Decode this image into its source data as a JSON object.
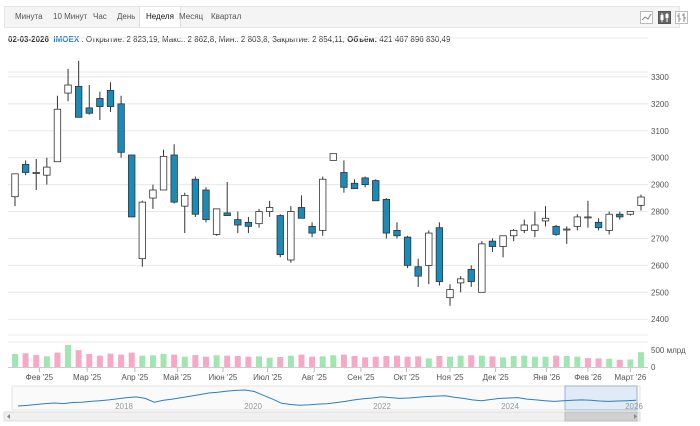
{
  "tabs": [
    {
      "label": "Минута"
    },
    {
      "label": "10 Минут"
    },
    {
      "label": "Час"
    },
    {
      "label": "День"
    },
    {
      "label": "Неделя"
    },
    {
      "label": "Месяц"
    },
    {
      "label": "Квартал"
    }
  ],
  "active_tab": "Неделя",
  "tools": [
    {
      "icon": "line-chart-icon"
    },
    {
      "icon": "candlestick-icon"
    },
    {
      "icon": "ohlc-bars-icon"
    }
  ],
  "info": {
    "date": "02-03-2026",
    "ticker": "IMOEX",
    "open_label": "Открытие:",
    "open": "2 823,19",
    "high_label": "Макс.:",
    "high": "2 862,8",
    "low_label": "Мин.:",
    "low": "2 803,8",
    "close_label": "Закрытие:",
    "close": "2 854,11",
    "volume_label": "Объём:",
    "volume": "421 467 896 830,49"
  },
  "colors": {
    "up_candle": "#ffffff",
    "down_candle": "#1a8ab8",
    "candle_outline": "#333333",
    "volume_up": "#9fe6b0",
    "volume_down": "#f7a8c4",
    "grid": "#e8e8e8",
    "navigator_line": "#2a7fc1",
    "navigator_selection": "#d6e3f5"
  },
  "chart_data": {
    "type": "candlestick",
    "y_ticks": [
      2400,
      2500,
      2600,
      2700,
      2800,
      2900,
      3000,
      3100,
      3200,
      3300
    ],
    "ylim": [
      2360,
      3400
    ],
    "x_labels": [
      "Фев '25",
      "Мар '25",
      "Апр '25",
      "Май '25",
      "Июн '25",
      "Июл '25",
      "Авг '25",
      "Сен '25",
      "Окт '25",
      "Ноя '25",
      "Дек '25",
      "Янв '26",
      "Фев '26",
      "Март '26"
    ],
    "x_label_index": [
      2.3,
      6.8,
      11.3,
      15.3,
      19.6,
      23.8,
      28.2,
      32.6,
      36.9,
      41.0,
      45.3,
      50.1,
      54.0,
      58.0
    ],
    "candles": [
      {
        "o": 2855,
        "h": 2940,
        "l": 2820,
        "c": 2940
      },
      {
        "o": 2975,
        "h": 2990,
        "l": 2935,
        "c": 2945
      },
      {
        "o": 2945,
        "h": 2995,
        "l": 2880,
        "c": 2945
      },
      {
        "o": 2935,
        "h": 3000,
        "l": 2900,
        "c": 2965
      },
      {
        "o": 2985,
        "h": 3230,
        "l": 2985,
        "c": 3180
      },
      {
        "o": 3240,
        "h": 3330,
        "l": 3210,
        "c": 3270
      },
      {
        "o": 3265,
        "h": 3360,
        "l": 3150,
        "c": 3150
      },
      {
        "o": 3185,
        "h": 3270,
        "l": 3160,
        "c": 3165
      },
      {
        "o": 3220,
        "h": 3245,
        "l": 3140,
        "c": 3190
      },
      {
        "o": 3250,
        "h": 3280,
        "l": 3170,
        "c": 3190
      },
      {
        "o": 3200,
        "h": 3230,
        "l": 3000,
        "c": 3020
      },
      {
        "o": 3010,
        "h": 3010,
        "l": 2780,
        "c": 2780
      },
      {
        "o": 2625,
        "h": 2840,
        "l": 2595,
        "c": 2835
      },
      {
        "o": 2850,
        "h": 2900,
        "l": 2810,
        "c": 2880
      },
      {
        "o": 2880,
        "h": 3030,
        "l": 2880,
        "c": 3005
      },
      {
        "o": 3010,
        "h": 3050,
        "l": 2830,
        "c": 2835
      },
      {
        "o": 2820,
        "h": 2870,
        "l": 2720,
        "c": 2860
      },
      {
        "o": 2920,
        "h": 2930,
        "l": 2780,
        "c": 2790
      },
      {
        "o": 2880,
        "h": 2890,
        "l": 2760,
        "c": 2770
      },
      {
        "o": 2715,
        "h": 2810,
        "l": 2710,
        "c": 2810
      },
      {
        "o": 2795,
        "h": 2910,
        "l": 2785,
        "c": 2785
      },
      {
        "o": 2770,
        "h": 2800,
        "l": 2720,
        "c": 2750
      },
      {
        "o": 2760,
        "h": 2780,
        "l": 2720,
        "c": 2745
      },
      {
        "o": 2755,
        "h": 2810,
        "l": 2740,
        "c": 2800
      },
      {
        "o": 2800,
        "h": 2840,
        "l": 2780,
        "c": 2815
      },
      {
        "o": 2785,
        "h": 2790,
        "l": 2630,
        "c": 2640
      },
      {
        "o": 2620,
        "h": 2820,
        "l": 2610,
        "c": 2800
      },
      {
        "o": 2815,
        "h": 2860,
        "l": 2785,
        "c": 2775
      },
      {
        "o": 2745,
        "h": 2760,
        "l": 2705,
        "c": 2720
      },
      {
        "o": 2730,
        "h": 2930,
        "l": 2710,
        "c": 2920
      },
      {
        "o": 2990,
        "h": 3015,
        "l": 2990,
        "c": 3015
      },
      {
        "o": 2945,
        "h": 2990,
        "l": 2870,
        "c": 2890
      },
      {
        "o": 2905,
        "h": 2920,
        "l": 2885,
        "c": 2885
      },
      {
        "o": 2925,
        "h": 2930,
        "l": 2890,
        "c": 2900
      },
      {
        "o": 2915,
        "h": 2920,
        "l": 2840,
        "c": 2840
      },
      {
        "o": 2845,
        "h": 2850,
        "l": 2700,
        "c": 2720
      },
      {
        "o": 2730,
        "h": 2760,
        "l": 2700,
        "c": 2710
      },
      {
        "o": 2705,
        "h": 2710,
        "l": 2590,
        "c": 2600
      },
      {
        "o": 2595,
        "h": 2625,
        "l": 2520,
        "c": 2560
      },
      {
        "o": 2600,
        "h": 2730,
        "l": 2530,
        "c": 2720
      },
      {
        "o": 2740,
        "h": 2760,
        "l": 2525,
        "c": 2540
      },
      {
        "o": 2480,
        "h": 2530,
        "l": 2450,
        "c": 2510
      },
      {
        "o": 2535,
        "h": 2560,
        "l": 2500,
        "c": 2550
      },
      {
        "o": 2585,
        "h": 2600,
        "l": 2520,
        "c": 2540
      },
      {
        "o": 2500,
        "h": 2690,
        "l": 2500,
        "c": 2680
      },
      {
        "o": 2690,
        "h": 2700,
        "l": 2650,
        "c": 2670
      },
      {
        "o": 2670,
        "h": 2710,
        "l": 2630,
        "c": 2710
      },
      {
        "o": 2710,
        "h": 2735,
        "l": 2690,
        "c": 2730
      },
      {
        "o": 2730,
        "h": 2770,
        "l": 2720,
        "c": 2750
      },
      {
        "o": 2730,
        "h": 2800,
        "l": 2705,
        "c": 2750
      },
      {
        "o": 2765,
        "h": 2820,
        "l": 2745,
        "c": 2775
      },
      {
        "o": 2745,
        "h": 2750,
        "l": 2710,
        "c": 2715
      },
      {
        "o": 2735,
        "h": 2745,
        "l": 2680,
        "c": 2735
      },
      {
        "o": 2745,
        "h": 2790,
        "l": 2730,
        "c": 2780
      },
      {
        "o": 2780,
        "h": 2840,
        "l": 2740,
        "c": 2780
      },
      {
        "o": 2760,
        "h": 2775,
        "l": 2730,
        "c": 2740
      },
      {
        "o": 2730,
        "h": 2800,
        "l": 2715,
        "c": 2790
      },
      {
        "o": 2790,
        "h": 2800,
        "l": 2770,
        "c": 2780
      },
      {
        "o": 2790,
        "h": 2800,
        "l": 2785,
        "c": 2800
      },
      {
        "o": 2823,
        "h": 2863,
        "l": 2804,
        "c": 2854
      }
    ],
    "volume_axis": {
      "ticks": [
        0,
        500
      ],
      "labels": [
        "0",
        "500 млрд"
      ],
      "max": 640
    },
    "volumes": [
      380,
      400,
      350,
      310,
      420,
      640,
      490,
      380,
      330,
      390,
      360,
      420,
      330,
      340,
      380,
      360,
      300,
      350,
      300,
      340,
      330,
      320,
      300,
      310,
      270,
      290,
      330,
      360,
      300,
      310,
      340,
      360,
      320,
      280,
      300,
      320,
      330,
      300,
      310,
      250,
      320,
      300,
      330,
      340,
      330,
      310,
      280,
      320,
      330,
      300,
      300,
      330,
      320,
      300,
      260,
      250,
      240,
      210,
      220,
      430
    ],
    "volume_up": [
      true,
      false,
      false,
      true,
      false,
      true,
      false,
      false,
      false,
      false,
      false,
      false,
      true,
      true,
      true,
      false,
      true,
      false,
      false,
      true,
      false,
      false,
      false,
      true,
      true,
      false,
      true,
      false,
      false,
      true,
      true,
      false,
      false,
      false,
      false,
      false,
      false,
      false,
      false,
      true,
      false,
      true,
      true,
      false,
      true,
      false,
      true,
      true,
      true,
      true,
      true,
      false,
      true,
      true,
      false,
      false,
      true,
      false,
      true,
      true
    ],
    "navigator": {
      "x_labels": [
        "2018",
        "2020",
        "2022",
        "2024",
        "2026"
      ],
      "series": [
        2100,
        2180,
        2300,
        2420,
        2500,
        2420,
        2560,
        2600,
        2700,
        2800,
        2900,
        3050,
        3200,
        3300,
        3100,
        2600,
        2850,
        3000,
        3200,
        3400,
        3600,
        3800,
        3900,
        4050,
        4150,
        4200,
        4000,
        3500,
        3000,
        2450,
        2300,
        2200,
        2250,
        2350,
        2400,
        2550,
        2700,
        2900,
        3050,
        3150,
        3300,
        3200,
        3100,
        3150,
        3250,
        3350,
        3400,
        3450,
        3250,
        3100,
        2900,
        2800,
        2950,
        3100,
        3150,
        3200,
        3000,
        2900,
        2800,
        2700,
        2800,
        2850,
        2900,
        2850,
        2750,
        2700,
        2750,
        2800,
        2850
      ]
    }
  }
}
